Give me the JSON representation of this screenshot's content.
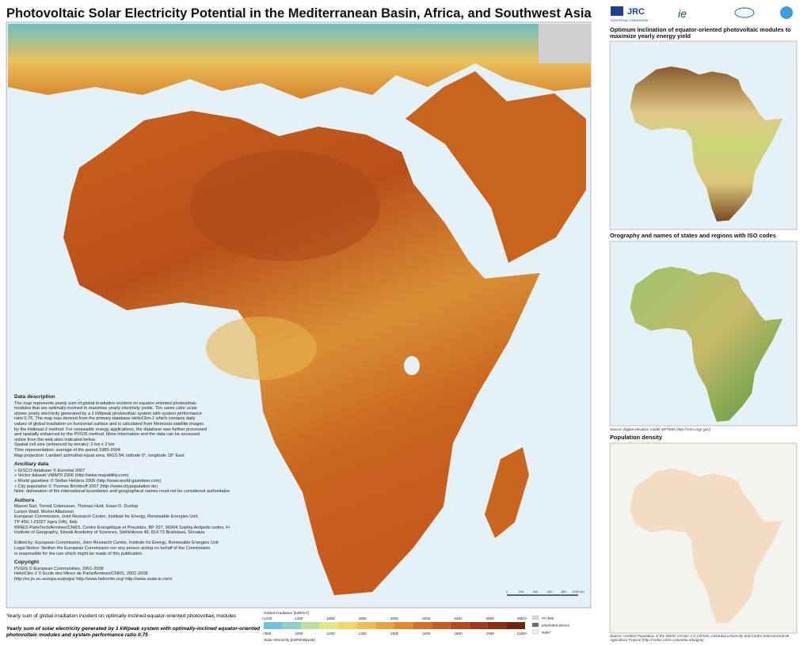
{
  "header": {
    "title": "Photovoltaic Solar Electricity Potential in the Mediterranean Basin, Africa, and Southwest Asia",
    "logo_jrc": "JRC",
    "logo_ec": "EUROPEAN COMMISSION"
  },
  "panels": [
    {
      "title": "Optimum inclination of equator-oriented photovoltaic modules to maximize yearly energy yield"
    },
    {
      "title": "Orography and names of states and regions with ISO codes",
      "source": "Source: Digital elevation model SRTM30 (http://srtm.usgs.gov)"
    },
    {
      "title": "Population density",
      "source": "Source: Gridded Population of the World, version 3 © CIESIN, Columbia University and Centro Internacional de Agricultura Tropical (http://sedac.ciesin.columbia.edu/gpw)"
    }
  ],
  "description": [
    {
      "heading": "Data description",
      "lines": [
        "The map represents yearly sum of global irradiation incident on equator-oriented photovoltaic",
        "modules that are optimally-inclined to maximise yearly electricity yields. The same color scale",
        "shows yearly electricity generated by a 1 kWpeak photovoltaic system with system performance",
        "ratio 0.75. The map was derived from the primary database HelioClim-1 which contains daily",
        "values of global irradiation on horizontal surface and is calculated from Meteosat satellite images",
        "by the Heliosat-2 method. For renewable energy applications, the database was further processed",
        "and spatially enhanced by the PVGIS method. More information and the data can be accessed",
        "online from the web sites indicated below.",
        "Spatial cell size (enhanced by terrain): 2 km x 2 km",
        "Time representation: average of the period 1985-2004",
        "Map projection: Lambert azimuthal equal area, WGS 84, latitude 0°, longitude 18° East"
      ]
    },
    {
      "heading": "Ancillary data",
      "lines": [
        "» GISCO database © Eurostat 2007",
        "» Vector dataset VMAP0 2006 (http://www.mapability.com)",
        "» World gazetteer © Stefan Helders 2006 (http://www.world-gazetteer.com)",
        "» City population © Thomas Brinkhoff 2007 (http://www.citypopulation.de)",
        "Note: delineation of the international boundaries and geographical names must not be considered authoritative"
      ]
    },
    {
      "heading": "Authors",
      "lines": [
        "Marcel Šúri, Tomáš Cebecauer, Thomas Huld, Ewan D. Dunlop",
        "Lucien Wald, Michel Albuisson",
        "European Commission, Joint Research Centre, Institute for Energy, Renewable Energies Unit,",
        "TP 450, I-21027 Ispra (VA), Italy",
        "MINES ParisTech/Armines/CNRS, Centre Energétique et Procédés, BP 207, 06904 Sophia Antipolis cedex, France",
        "Institute of Geography, Slovak Academy of Sciences, Štefánikova 49, 814 73 Bratislava, Slovakia",
        "",
        "Edited by: European Commission, Joint Research Centre, Institute for Energy, Renewable Energies Unit",
        "Legal Notice: Neither the European Commission nor any person acting on behalf of the Commission",
        "is responsible for the use which might be made of this publication."
      ]
    },
    {
      "heading": "Copyright",
      "lines": [
        "PVGIS © European Communities, 2001-2008",
        "HelioClim-1 © Ecole des Mines de Paris/Armines/CNRS, 2001-2008",
        "http://re.jrc.ec.europa.eu/pvgis/     http://www.helioclim.org/     http://www.soda-is.com/"
      ]
    }
  ],
  "legend": {
    "caption_irradiation": "Yearly sum of global irradiation incident on optimally-inclined equator-oriented photovoltaic modules",
    "caption_electricity": "Yearly sum of solar electricity generated by 1 kWpeak system with optimally-inclined equator-oriented photovoltaic modules and system performance ratio 0.75",
    "irradiation_label": "Global irradiation [kWh/m²]",
    "irradiation_ticks": [
      "<1200",
      "1400",
      "1600",
      "1800",
      "2000",
      "2200",
      "2400",
      "2600",
      "2800>"
    ],
    "electricity_label": "Solar electricity [kWh/kWpeak]",
    "electricity_ticks": [
      "<900",
      "1050",
      "1200",
      "1350",
      "1500",
      "1650",
      "1800",
      "1950",
      "2100>"
    ],
    "keys": [
      "no data",
      "populated places",
      "water"
    ]
  },
  "scale_bar": [
    "0",
    "200",
    "400",
    "600",
    "800",
    "1000 km"
  ]
}
